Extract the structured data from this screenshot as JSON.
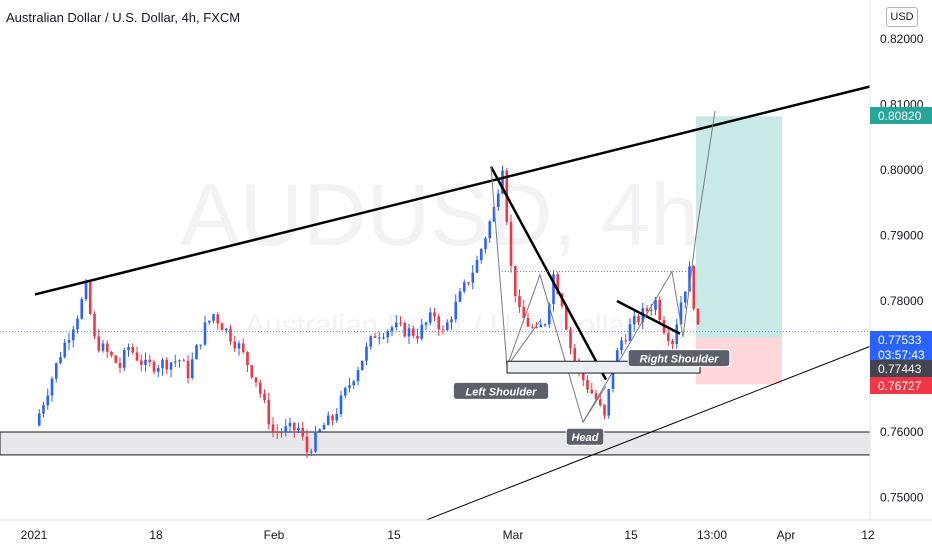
{
  "header": {
    "title": "Australian Dollar / U.S. Dollar, 4h, FXCM",
    "currency": "USD"
  },
  "watermark": {
    "symbol": "AUDUSD, 4h",
    "name": "Australian Dollar / U.S. Dollar"
  },
  "colors": {
    "up": "#2962ff",
    "down": "#f23645",
    "target_zone": "#b2dfdb",
    "stop_zone": "#ffcdd2",
    "tag_target": "#26a69a",
    "tag_price": "#2962ff",
    "tag_entry": "#434651",
    "tag_stop": "#f23645"
  },
  "chart_data": {
    "type": "candlestick",
    "title": "Australian Dollar / U.S. Dollar, 4h, FXCM",
    "y_axis": {
      "ticks": [
        "0.82000",
        "0.81000",
        "0.80000",
        "0.79000",
        "0.78000",
        "0.76000",
        "0.75000"
      ],
      "range": [
        0.746,
        0.825
      ]
    },
    "x_axis": {
      "ticks": [
        "2021",
        "18",
        "Feb",
        "15",
        "Mar",
        "15",
        "13:00",
        "Apr",
        "12"
      ]
    },
    "price_path": [
      [
        "2021-01-01",
        0.761
      ],
      [
        "2021-01-04",
        0.772
      ],
      [
        "2021-01-06",
        0.778
      ],
      [
        "2021-01-07",
        0.7818
      ],
      [
        "2021-01-08",
        0.774
      ],
      [
        "2021-01-11",
        0.77
      ],
      [
        "2021-01-12",
        0.773
      ],
      [
        "2021-01-14",
        0.77
      ],
      [
        "2021-01-18",
        0.771
      ],
      [
        "2021-01-19",
        0.769
      ],
      [
        "2021-01-21",
        0.776
      ],
      [
        "2021-01-22",
        0.778
      ],
      [
        "2021-01-25",
        0.773
      ],
      [
        "2021-01-27",
        0.768
      ],
      [
        "2021-01-29",
        0.76
      ],
      [
        "2021-02-01",
        0.7605
      ],
      [
        "2021-02-02",
        0.757
      ],
      [
        "2021-02-04",
        0.761
      ],
      [
        "2021-02-05",
        0.762
      ],
      [
        "2021-02-08",
        0.77
      ],
      [
        "2021-02-10",
        0.775
      ],
      [
        "2021-02-12",
        0.776
      ],
      [
        "2021-02-15",
        0.775
      ],
      [
        "2021-02-17",
        0.778
      ],
      [
        "2021-02-18",
        0.775
      ],
      [
        "2021-02-19",
        0.778
      ],
      [
        "2021-02-22",
        0.786
      ],
      [
        "2021-02-23",
        0.79
      ],
      [
        "2021-02-24",
        0.794
      ],
      [
        "2021-02-25",
        0.801
      ],
      [
        "2021-02-26",
        0.785
      ],
      [
        "2021-02-27",
        0.778
      ],
      [
        "2021-03-01",
        0.775
      ],
      [
        "2021-03-02",
        0.777
      ],
      [
        "2021-03-03",
        0.784
      ],
      [
        "2021-03-04",
        0.78
      ],
      [
        "2021-03-05",
        0.773
      ],
      [
        "2021-03-06",
        0.769
      ],
      [
        "2021-03-08",
        0.765
      ],
      [
        "2021-03-09",
        0.762
      ],
      [
        "2021-03-10",
        0.77
      ],
      [
        "2021-03-11",
        0.774
      ],
      [
        "2021-03-12",
        0.776
      ],
      [
        "2021-03-15",
        0.78
      ],
      [
        "2021-03-16",
        0.776
      ],
      [
        "2021-03-17",
        0.774
      ],
      [
        "2021-03-18",
        0.78
      ],
      [
        "2021-03-19",
        0.7845
      ],
      [
        "2021-03-20",
        0.7753
      ]
    ],
    "horizontal_zones": [
      {
        "from": 0.7565,
        "to": 0.76
      }
    ],
    "trendlines": [
      {
        "from": [
          "2021-01-01",
          0.781
        ],
        "to": [
          "2021-04-10",
          0.813
        ]
      },
      {
        "from": [
          "2021-02-10",
          0.7435
        ],
        "to": [
          "2021-04-15",
          0.776
        ]
      }
    ],
    "pattern_labels": [
      "Left Shoulder",
      "Head",
      "Right Shoulder"
    ],
    "position": {
      "entry": 0.77443,
      "target": 0.8082,
      "stop": 0.76727
    },
    "price_tags": [
      {
        "label": "0.80820",
        "value": 0.8082,
        "kind": "target"
      },
      {
        "label": "0.77533",
        "value": 0.77533,
        "kind": "price",
        "countdown": "03:57:43"
      },
      {
        "label": "0.77443",
        "value": 0.77443,
        "kind": "entry"
      },
      {
        "label": "0.76727",
        "value": 0.76727,
        "kind": "stop"
      }
    ]
  }
}
